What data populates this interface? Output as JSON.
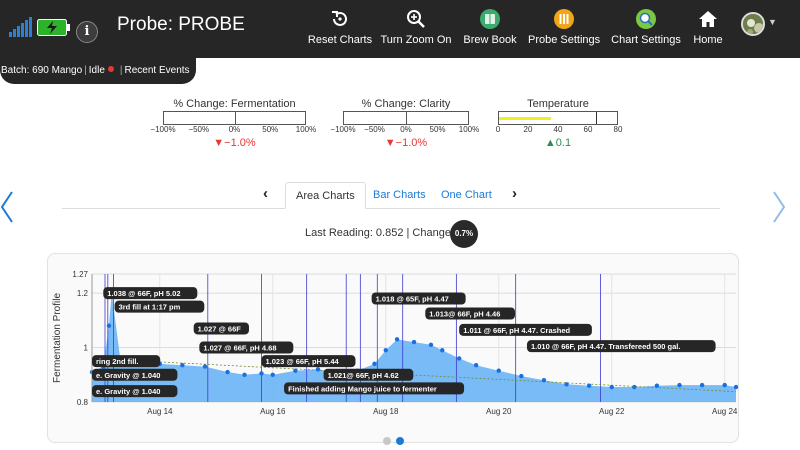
{
  "header": {
    "title": "Probe: PROBE",
    "info_label": "i",
    "nav": [
      {
        "label": "Reset Charts",
        "icon": "reset-icon"
      },
      {
        "label": "Turn Zoom On",
        "icon": "zoom-icon"
      },
      {
        "label": "Brew Book",
        "icon": "book-icon"
      },
      {
        "label": "Probe Settings",
        "icon": "probe-settings-icon"
      },
      {
        "label": "Chart Settings",
        "icon": "chart-settings-icon"
      },
      {
        "label": "Home",
        "icon": "home-icon"
      }
    ]
  },
  "status": {
    "batch": "Batch: 690 Mango",
    "state": "Idle",
    "events": "Recent Events",
    "state_color": "#e53935"
  },
  "gauges": [
    {
      "title": "% Change: Fermentation",
      "ticks": [
        "−100%",
        "−50%",
        "0%",
        "50%",
        "100%"
      ],
      "value": "▼−1.0%",
      "direction": "down",
      "level": -1.0
    },
    {
      "title": "% Change: Clarity",
      "ticks": [
        "−100%",
        "−50%",
        "0%",
        "50%",
        "100%"
      ],
      "value": "▼−1.0%",
      "direction": "down",
      "level": -1.0
    },
    {
      "title": "Temperature",
      "ticks": [
        "0",
        "20",
        "40",
        "60",
        "80"
      ],
      "value": "▲0.1",
      "direction": "up",
      "fill_from": 0,
      "fill_to": 35,
      "marker": 66
    }
  ],
  "tabs": {
    "prev": "‹",
    "next": "›",
    "items": [
      "Area Charts",
      "Bar Charts",
      "One Chart"
    ],
    "active": 0
  },
  "reading": {
    "text": "Last Reading: 0.852 | Change:",
    "change": "0.7%"
  },
  "colors": {
    "topbar": "#262626",
    "area": "#6ab4f5",
    "points": "#1a6fe0",
    "events": "#3b3bd0",
    "gauge_fill": "#f2ef1f"
  },
  "chart_data": {
    "type": "area",
    "ylabel": "Fermentation Profile",
    "xlabel": "",
    "ylim": [
      0.8,
      1.27
    ],
    "yticks": [
      "0.8",
      "1",
      "1.2",
      "1.27"
    ],
    "ytick_values": [
      0.8,
      1.0,
      1.2,
      1.27
    ],
    "xlim": [
      12.8,
      24.2
    ],
    "xticks": [
      "Aug 14",
      "Aug 16",
      "Aug 18",
      "Aug 20",
      "Aug 22",
      "Aug 24"
    ],
    "xtick_values": [
      14,
      16,
      18,
      20,
      22,
      24
    ],
    "x": [
      12.8,
      13.0,
      13.1,
      13.15,
      13.3,
      13.6,
      14.0,
      14.4,
      14.8,
      15.2,
      15.5,
      15.8,
      16.0,
      16.4,
      16.8,
      17.2,
      17.5,
      17.8,
      18.0,
      18.2,
      18.5,
      18.8,
      19.0,
      19.3,
      19.6,
      20.0,
      20.4,
      20.8,
      21.2,
      21.6,
      22.0,
      22.4,
      22.8,
      23.2,
      23.6,
      24.0,
      24.2
    ],
    "values": [
      0.91,
      0.93,
      1.08,
      1.2,
      0.96,
      0.94,
      0.94,
      0.935,
      0.93,
      0.91,
      0.9,
      0.905,
      0.9,
      0.915,
      0.92,
      0.905,
      0.915,
      0.94,
      0.99,
      1.03,
      1.02,
      1.01,
      0.99,
      0.96,
      0.935,
      0.915,
      0.895,
      0.88,
      0.865,
      0.86,
      0.855,
      0.855,
      0.86,
      0.862,
      0.862,
      0.862,
      0.855
    ],
    "trend": [
      0.96,
      0.838
    ],
    "events": [
      13.03,
      13.08,
      13.18,
      14.85,
      15.8,
      16.6,
      17.3,
      17.55,
      17.85,
      18.3,
      19.25,
      20.3,
      21.8
    ],
    "annotations": [
      {
        "text": "1.038 @ 66F, pH 5.02",
        "x": 13.0,
        "y": 1.2
      },
      {
        "text": "3rd fill at 1:17 pm",
        "x": 13.2,
        "y": 1.15
      },
      {
        "text": "1.027 @ 66F",
        "x": 14.6,
        "y": 1.07
      },
      {
        "text": "1.027 @ 66F, pH 4.68",
        "x": 14.7,
        "y": 1.0
      },
      {
        "text": "ring 2nd fill.",
        "x": 12.8,
        "y": 0.95
      },
      {
        "text": "e. Gravity @ 1.040",
        "x": 12.8,
        "y": 0.9
      },
      {
        "text": "e. Gravity @ 1.040",
        "x": 12.8,
        "y": 0.84
      },
      {
        "text": "1.023 @ 66F, pH 5.44",
        "x": 15.8,
        "y": 0.95
      },
      {
        "text": "1.021@ 66F, pH 4.62",
        "x": 16.9,
        "y": 0.9
      },
      {
        "text": "Finished adding Mango juice to fermenter",
        "x": 16.2,
        "y": 0.85
      },
      {
        "text": "1.018 @ 65F, pH 4.47",
        "x": 17.75,
        "y": 1.18
      },
      {
        "text": "1.013@ 66F, pH 4.46",
        "x": 18.7,
        "y": 1.125
      },
      {
        "text": "1.011 @ 66F, pH 4.47. Crashed",
        "x": 19.3,
        "y": 1.065
      },
      {
        "text": "1.010 @ 66F, pH 4.47. Transfereed 500 gal.",
        "x": 20.5,
        "y": 1.005
      }
    ]
  },
  "pager": {
    "count": 2,
    "active": 1
  }
}
